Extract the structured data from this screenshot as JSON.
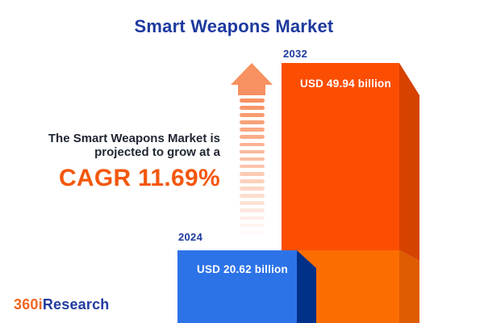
{
  "title": "Smart Weapons Market",
  "annotation": {
    "line1": "The Smart Weapons Market is",
    "line2": "projected to grow at a",
    "cagr": "CAGR 11.69%"
  },
  "bars": [
    {
      "year": "2024",
      "value_label": "USD 20.62 billion",
      "face_color": "#2D73E8",
      "side_color": "#003087"
    },
    {
      "year": "2032",
      "value_label": "USD 49.94 billion",
      "face_color": "#FB4E03",
      "face_color_lower": "#FB6D00",
      "side_color": "#D64200",
      "side_color_lower": "#E05C00"
    }
  ],
  "arrow": {
    "name": "growth-arrow",
    "color": "#F79161",
    "stripe_count": 19
  },
  "logo": {
    "part1": "360i",
    "part2": "Research",
    "part1_color": "#F26522",
    "part2_color": "#223C9E"
  },
  "colors": {
    "title_blue": "#1E3A9E",
    "cagr_orange": "#F4570D",
    "body_text": "#212733",
    "background": "#ffffff"
  },
  "chart_data": {
    "type": "bar",
    "title": "Smart Weapons Market",
    "categories": [
      "2024",
      "2032"
    ],
    "values": [
      20.62,
      49.94
    ],
    "unit": "USD billion",
    "value_labels": [
      "USD 20.62 billion",
      "USD 49.94 billion"
    ],
    "cagr_percent": 11.69,
    "annotation": "The Smart Weapons Market is projected to grow at a CAGR 11.69%",
    "bar_colors": [
      "#2D73E8",
      "#FB4E03"
    ],
    "legend": "none",
    "grid": false,
    "axes_shown": false,
    "style": "3d-cuboid infographic, value labels inside bars, year labels above bars"
  }
}
